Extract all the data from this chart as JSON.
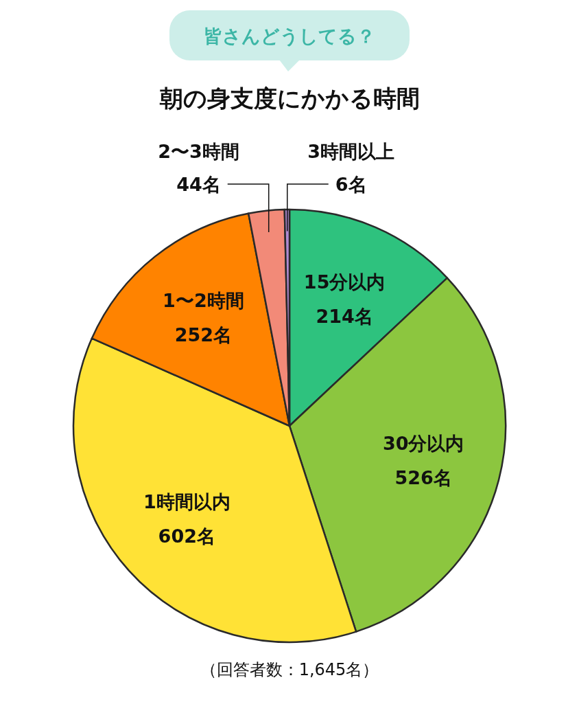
{
  "chart_data": {
    "type": "pie",
    "title": "朝の身支度にかかる時間",
    "subtitle": "皆さんどうしてる？",
    "categories": [
      "15分以内",
      "30分以内",
      "1時間以内",
      "1〜2時間",
      "2〜3時間",
      "3時間以上"
    ],
    "values": [
      214,
      526,
      602,
      252,
      44,
      6
    ],
    "colors": [
      "#2ec27e",
      "#8cc63f",
      "#ffe236",
      "#ff8300",
      "#f28a78",
      "#b08ad0"
    ],
    "value_labels": [
      "214名",
      "526名",
      "602名",
      "252名",
      "44名",
      "6名"
    ],
    "annotations": [
      "（回答者数：1,645名）"
    ]
  }
}
